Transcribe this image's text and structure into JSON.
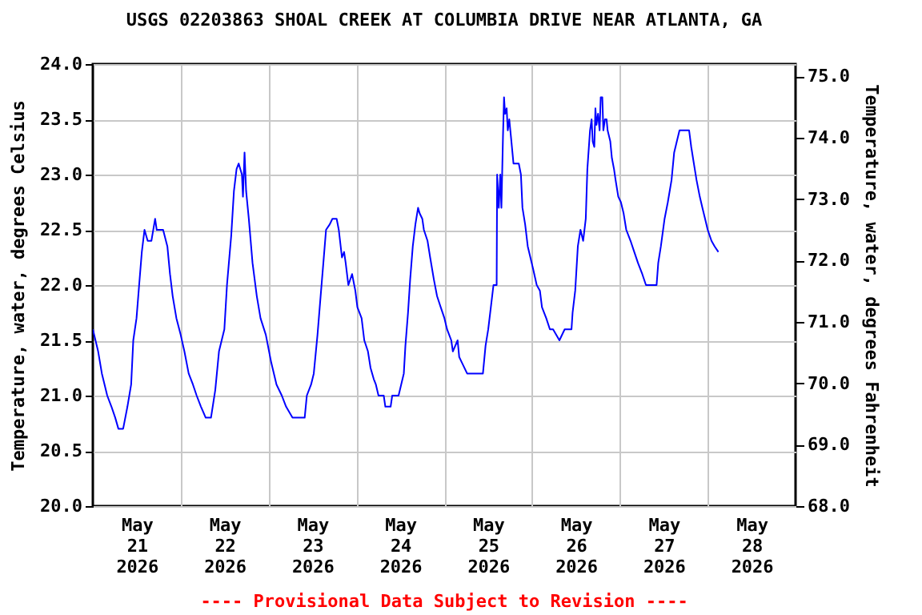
{
  "chart_data": {
    "type": "line",
    "title": "USGS 02203863 SHOAL CREEK AT COLUMBIA DRIVE NEAR ATLANTA, GA",
    "ylabel": "Temperature, water, degrees Celsius",
    "y2label": "Temperature, water, degrees Fahrenheit",
    "annotations": [
      "---- Provisional Data Subject to Revision ----"
    ],
    "color": "#0000ff",
    "grid": true,
    "xlim": [
      "2026-05-21T00:00",
      "2026-05-29T00:00"
    ],
    "xticks": [
      {
        "value": "2026-05-21T12:00",
        "label": "May\n21\n2026"
      },
      {
        "value": "2026-05-22T00:00",
        "label": null
      },
      {
        "value": "2026-05-22T12:00",
        "label": "May\n22\n2026"
      },
      {
        "value": "2026-05-23T00:00",
        "label": null
      },
      {
        "value": "2026-05-23T12:00",
        "label": "May\n23\n2026"
      },
      {
        "value": "2026-05-24T00:00",
        "label": null
      },
      {
        "value": "2026-05-24T12:00",
        "label": "May\n24\n2026"
      },
      {
        "value": "2026-05-25T00:00",
        "label": null
      },
      {
        "value": "2026-05-25T12:00",
        "label": "May\n25\n2026"
      },
      {
        "value": "2026-05-26T00:00",
        "label": null
      },
      {
        "value": "2026-05-26T12:00",
        "label": "May\n26\n2026"
      },
      {
        "value": "2026-05-27T00:00",
        "label": null
      },
      {
        "value": "2026-05-27T12:00",
        "label": "May\n27\n2026"
      },
      {
        "value": "2026-05-28T00:00",
        "label": null
      },
      {
        "value": "2026-05-28T12:00",
        "label": "May\n28\n2026"
      }
    ],
    "ylim": [
      20,
      24
    ],
    "yticks": [
      {
        "value": 20,
        "label": "20.0"
      },
      {
        "value": 20.5,
        "label": "20.5"
      },
      {
        "value": 21,
        "label": "21.0"
      },
      {
        "value": 21.5,
        "label": "21.5"
      },
      {
        "value": 22,
        "label": "22.0"
      },
      {
        "value": 22.5,
        "label": "22.5"
      },
      {
        "value": 23,
        "label": "23.0"
      },
      {
        "value": 23.5,
        "label": "23.5"
      },
      {
        "value": 24,
        "label": "24.0"
      }
    ],
    "y2lim": [
      68,
      75.2
    ],
    "y2ticks": [
      {
        "value": 68,
        "label": "68.0"
      },
      {
        "value": 69,
        "label": "69.0"
      },
      {
        "value": 70,
        "label": "70.0"
      },
      {
        "value": 71,
        "label": "71.0"
      },
      {
        "value": 72,
        "label": "72.0"
      },
      {
        "value": 73,
        "label": "73.0"
      },
      {
        "value": 74,
        "label": "74.0"
      },
      {
        "value": 75,
        "label": "75.0"
      }
    ],
    "x": [
      "2026-05-21T00:00",
      "2026-05-21T01:27",
      "2026-05-21T02:28",
      "2026-05-21T03:56",
      "2026-05-21T05:05",
      "2026-05-21T06:07",
      "2026-05-21T06:59",
      "2026-05-21T08:17",
      "2026-05-21T09:27",
      "2026-05-21T10:28",
      "2026-05-21T11:03",
      "2026-05-21T11:56",
      "2026-05-21T12:39",
      "2026-05-21T13:23",
      "2026-05-21T14:07",
      "2026-05-21T14:59",
      "2026-05-21T16:00",
      "2026-05-21T17:01",
      "2026-05-21T17:27",
      "2026-05-21T19:12",
      "2026-05-21T20:22",
      "2026-05-21T21:05",
      "2026-05-21T21:49",
      "2026-05-21T22:50",
      "2026-05-22T00:00",
      "2026-05-22T01:01",
      "2026-05-22T02:11",
      "2026-05-22T03:21",
      "2026-05-22T04:22",
      "2026-05-22T05:32",
      "2026-05-22T06:50",
      "2026-05-22T08:17",
      "2026-05-22T09:27",
      "2026-05-22T10:28",
      "2026-05-22T11:56",
      "2026-05-22T12:39",
      "2026-05-22T13:49",
      "2026-05-22T14:33",
      "2026-05-22T15:16",
      "2026-05-22T15:51",
      "2026-05-22T16:44",
      "2026-05-22T17:01",
      "2026-05-22T17:27",
      "2026-05-22T17:53",
      "2026-05-22T18:37",
      "2026-05-22T19:38",
      "2026-05-22T20:48",
      "2026-05-22T21:49",
      "2026-05-22T23:16",
      "2026-05-23T00:44",
      "2026-05-23T02:11",
      "2026-05-23T03:38",
      "2026-05-23T04:48",
      "2026-05-23T06:33",
      "2026-05-23T09:53",
      "2026-05-23T10:28",
      "2026-05-23T11:38",
      "2026-05-23T12:22",
      "2026-05-23T13:23",
      "2026-05-23T14:07",
      "2026-05-23T14:59",
      "2026-05-23T15:43",
      "2026-05-23T16:44",
      "2026-05-23T17:27",
      "2026-05-23T18:37",
      "2026-05-23T19:12",
      "2026-05-23T20:04",
      "2026-05-23T20:39",
      "2026-05-23T21:05",
      "2026-05-23T21:49",
      "2026-05-23T22:50",
      "2026-05-23T23:43",
      "2026-05-24T00:17",
      "2026-05-24T01:26",
      "2026-05-24T02:10",
      "2026-05-24T03:10",
      "2026-05-24T03:53",
      "2026-05-24T04:45",
      "2026-05-24T05:20",
      "2026-05-24T06:03",
      "2026-05-24T07:29",
      "2026-05-24T07:55",
      "2026-05-24T09:22",
      "2026-05-24T09:48",
      "2026-05-24T11:32",
      "2026-05-24T12:15",
      "2026-05-24T12:58",
      "2026-05-24T13:24",
      "2026-05-24T14:07",
      "2026-05-24T14:42",
      "2026-05-24T15:25",
      "2026-05-24T16:08",
      "2026-05-24T16:52",
      "2026-05-24T17:17",
      "2026-05-24T18:01",
      "2026-05-24T18:27",
      "2026-05-24T19:27",
      "2026-05-24T20:10",
      "2026-05-24T21:11",
      "2026-05-24T22:03",
      "2026-05-24T23:03",
      "2026-05-25T00:04",
      "2026-05-25T00:47",
      "2026-05-25T01:56",
      "2026-05-25T02:22",
      "2026-05-25T03:40",
      "2026-05-25T04:06",
      "2026-05-25T04:49",
      "2026-05-25T06:16",
      "2026-05-25T10:35",
      "2026-05-25T11:18",
      "2026-05-25T12:02",
      "2026-05-25T12:45",
      "2026-05-25T13:28",
      "2026-05-25T14:20",
      "2026-05-25T14:28",
      "2026-05-25T14:55",
      "2026-05-25T15:20",
      "2026-05-25T15:38",
      "2026-05-25T16:04",
      "2026-05-25T16:21",
      "2026-05-25T16:38",
      "2026-05-25T17:04",
      "2026-05-25T17:22",
      "2026-05-25T17:47",
      "2026-05-25T18:13",
      "2026-05-25T18:56",
      "2026-05-25T20:23",
      "2026-05-25T20:58",
      "2026-05-25T21:23",
      "2026-05-25T22:07",
      "2026-05-25T22:50",
      "2026-05-25T23:33",
      "2026-05-26T00:16",
      "2026-05-26T01:17",
      "2026-05-26T02:09",
      "2026-05-26T02:43",
      "2026-05-26T03:53",
      "2026-05-26T04:53",
      "2026-05-26T05:45",
      "2026-05-26T07:29",
      "2026-05-26T08:55",
      "2026-05-26T10:47",
      "2026-05-26T11:05",
      "2026-05-26T11:48",
      "2026-05-26T12:31",
      "2026-05-26T13:14",
      "2026-05-26T13:58",
      "2026-05-26T14:41",
      "2026-05-26T15:07",
      "2026-05-26T15:51",
      "2026-05-26T16:17",
      "2026-05-26T16:35",
      "2026-05-26T17:01",
      "2026-05-26T17:19",
      "2026-05-26T17:36",
      "2026-05-26T18:02",
      "2026-05-26T18:28",
      "2026-05-26T18:46",
      "2026-05-26T19:12",
      "2026-05-26T19:29",
      "2026-05-26T19:56",
      "2026-05-26T20:22",
      "2026-05-26T20:39",
      "2026-05-26T21:23",
      "2026-05-26T21:49",
      "2026-05-26T22:24",
      "2026-05-26T22:50",
      "2026-05-26T23:34",
      "2026-05-27T00:17",
      "2026-05-27T01:01",
      "2026-05-27T01:45",
      "2026-05-27T02:55",
      "2026-05-27T03:56",
      "2026-05-27T04:57",
      "2026-05-27T06:07",
      "2026-05-27T07:08",
      "2026-05-27T10:02",
      "2026-05-27T10:29",
      "2026-05-27T11:12",
      "2026-05-27T12:13",
      "2026-05-27T13:06",
      "2026-05-27T14:07",
      "2026-05-27T14:50",
      "2026-05-27T15:34",
      "2026-05-27T16:18",
      "2026-05-27T18:55",
      "2026-05-27T19:30",
      "2026-05-27T20:13",
      "2026-05-27T20:57",
      "2026-05-27T21:50",
      "2026-05-27T22:33",
      "2026-05-27T23:17",
      "2026-05-28T00:00",
      "2026-05-28T01:02",
      "2026-05-28T01:54",
      "2026-05-28T02:55"
    ],
    "values": [
      21.6,
      21.4,
      21.2,
      21.0,
      20.9,
      20.8,
      20.7,
      20.7,
      20.9,
      21.1,
      21.5,
      21.7,
      22.0,
      22.3,
      22.5,
      22.4,
      22.4,
      22.6,
      22.5,
      22.5,
      22.35,
      22.1,
      21.9,
      21.7,
      21.55,
      21.4,
      21.2,
      21.1,
      21.0,
      20.9,
      20.8,
      20.8,
      21.05,
      21.4,
      21.6,
      22.0,
      22.45,
      22.85,
      23.05,
      23.1,
      23.0,
      22.8,
      23.2,
      22.85,
      22.6,
      22.2,
      21.9,
      21.7,
      21.55,
      21.3,
      21.1,
      21.0,
      20.9,
      20.8,
      20.8,
      21.0,
      21.1,
      21.2,
      21.55,
      21.85,
      22.2,
      22.5,
      22.55,
      22.6,
      22.6,
      22.5,
      22.25,
      22.3,
      22.2,
      22.0,
      22.1,
      21.95,
      21.8,
      21.7,
      21.5,
      21.4,
      21.25,
      21.15,
      21.1,
      21.0,
      21.0,
      20.9,
      20.9,
      21.0,
      21.0,
      21.1,
      21.2,
      21.45,
      21.75,
      22.05,
      22.35,
      22.55,
      22.7,
      22.65,
      22.6,
      22.5,
      22.4,
      22.25,
      22.05,
      21.9,
      21.8,
      21.7,
      21.6,
      21.5,
      21.4,
      21.5,
      21.35,
      21.3,
      21.2,
      21.2,
      21.45,
      21.6,
      21.8,
      22.0,
      22.0,
      23.0,
      22.7,
      23.0,
      22.7,
      23.35,
      23.7,
      23.55,
      23.6,
      23.4,
      23.5,
      23.35,
      23.1,
      23.1,
      23.0,
      22.7,
      22.55,
      22.35,
      22.25,
      22.15,
      22.0,
      21.95,
      21.8,
      21.7,
      21.6,
      21.6,
      21.5,
      21.6,
      21.6,
      21.75,
      21.95,
      22.35,
      22.5,
      22.4,
      22.6,
      23.05,
      23.4,
      23.5,
      23.3,
      23.25,
      23.6,
      23.45,
      23.55,
      23.4,
      23.7,
      23.7,
      23.4,
      23.5,
      23.5,
      23.4,
      23.3,
      23.15,
      23.05,
      22.95,
      22.8,
      22.75,
      22.65,
      22.5,
      22.4,
      22.3,
      22.2,
      22.1,
      22.0,
      22.0,
      22.2,
      22.35,
      22.6,
      22.75,
      22.95,
      23.2,
      23.3,
      23.4,
      23.4,
      23.25,
      23.1,
      22.95,
      22.8,
      22.7,
      22.6,
      22.5,
      22.4,
      22.35,
      22.3
    ]
  }
}
